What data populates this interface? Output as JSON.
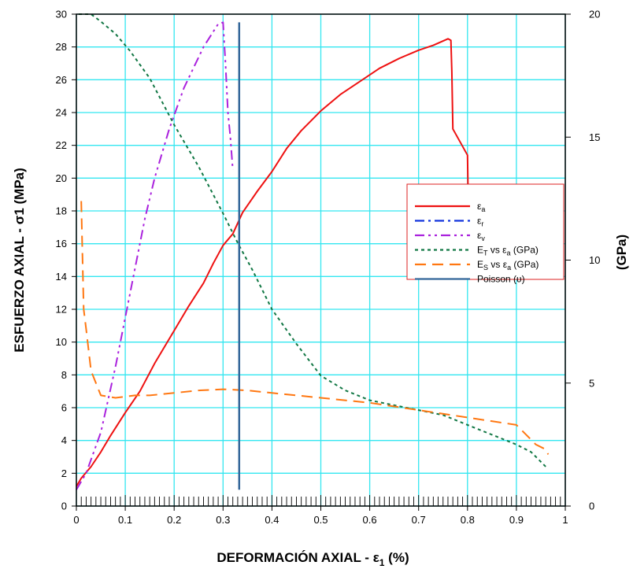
{
  "chart_data": {
    "type": "line",
    "xlabel": "DEFORMACIÓN AXIAL - ε",
    "xlabel_sub": "1",
    "xlabel_unit": " (%)",
    "ylabel": "ESFUERZO AXIAL - σ1 (MPa)",
    "y2label": "(GPa)",
    "xlim": [
      0,
      1
    ],
    "ylim": [
      0,
      30
    ],
    "y2lim": [
      0,
      20
    ],
    "grid": true,
    "legend_position": "right-center",
    "x_ticks": [
      "0",
      "0.1",
      "0.2",
      "0.3",
      "0.4",
      "0.5",
      "0.6",
      "0.7",
      "0.8",
      "0.9",
      "1"
    ],
    "y_ticks": [
      "0",
      "2",
      "4",
      "6",
      "8",
      "10",
      "12",
      "14",
      "16",
      "18",
      "20",
      "22",
      "24",
      "26",
      "28",
      "30"
    ],
    "y2_ticks": [
      "0",
      "5",
      "10",
      "15",
      "20"
    ],
    "legend": [
      {
        "symbol": "ε",
        "sub": "a",
        "suffix": "",
        "color": "#ee1111",
        "dash": ""
      },
      {
        "symbol": "ε",
        "sub": "r",
        "suffix": "",
        "color": "#1133dd",
        "dash": "12,5,3,5"
      },
      {
        "symbol": "ε",
        "sub": "v",
        "suffix": "",
        "color": "#aa22dd",
        "dash": "12,5,3,5,3,5"
      },
      {
        "symbol": "E",
        "sub": "T",
        "suffix": " vs ε",
        "sub2": "a",
        "suffix2": " (GPa)",
        "color": "#117744",
        "dash": "4,4"
      },
      {
        "symbol": "E",
        "sub": "S",
        "suffix": " vs ε",
        "sub2": "a",
        "suffix2": " (GPa)",
        "color": "#ff7711",
        "dash": "14,8"
      },
      {
        "symbol": "Poisson (υ)",
        "sub": "",
        "suffix": "",
        "color": "#336699",
        "dash": ""
      }
    ],
    "series": [
      {
        "axis": "left",
        "color": "#ee1111",
        "dash": "",
        "width": 2,
        "points": [
          [
            0,
            1.2
          ],
          [
            0.01,
            1.7
          ],
          [
            0.03,
            2.4
          ],
          [
            0.05,
            3.3
          ],
          [
            0.07,
            4.3
          ],
          [
            0.1,
            5.7
          ],
          [
            0.13,
            7
          ],
          [
            0.16,
            8.7
          ],
          [
            0.2,
            10.7
          ],
          [
            0.23,
            12.2
          ],
          [
            0.26,
            13.6
          ],
          [
            0.28,
            14.8
          ],
          [
            0.3,
            15.9
          ],
          [
            0.32,
            16.6
          ],
          [
            0.34,
            17.9
          ],
          [
            0.37,
            19.2
          ],
          [
            0.4,
            20.4
          ],
          [
            0.43,
            21.8
          ],
          [
            0.46,
            22.9
          ],
          [
            0.5,
            24.1
          ],
          [
            0.54,
            25.1
          ],
          [
            0.58,
            25.9
          ],
          [
            0.62,
            26.7
          ],
          [
            0.66,
            27.3
          ],
          [
            0.7,
            27.8
          ],
          [
            0.73,
            28.1
          ],
          [
            0.76,
            28.5
          ],
          [
            0.766,
            28.4
          ],
          [
            0.768,
            26.5
          ],
          [
            0.77,
            23
          ],
          [
            0.8,
            21.4
          ],
          [
            0.801,
            19.5
          ]
        ]
      },
      {
        "axis": "left",
        "color": "#aa22dd",
        "dash": "12,5,3,5,3,5",
        "width": 2,
        "points": [
          [
            0,
            1
          ],
          [
            0.02,
            2
          ],
          [
            0.05,
            4.5
          ],
          [
            0.08,
            8.5
          ],
          [
            0.1,
            11.5
          ],
          [
            0.12,
            14.5
          ],
          [
            0.14,
            17.5
          ],
          [
            0.16,
            20
          ],
          [
            0.19,
            23
          ],
          [
            0.22,
            25.5
          ],
          [
            0.26,
            28
          ],
          [
            0.29,
            29.4
          ],
          [
            0.3,
            29.5
          ],
          [
            0.305,
            27
          ],
          [
            0.31,
            24
          ],
          [
            0.315,
            22.5
          ],
          [
            0.32,
            20.5
          ]
        ]
      },
      {
        "axis": "right",
        "color": "#117744",
        "dash": "4,4",
        "width": 2,
        "points": [
          [
            0.005,
            20
          ],
          [
            0.03,
            20
          ],
          [
            0.05,
            19.7
          ],
          [
            0.08,
            19.2
          ],
          [
            0.11,
            18.5
          ],
          [
            0.15,
            17.4
          ],
          [
            0.2,
            15.5
          ],
          [
            0.25,
            13.8
          ],
          [
            0.3,
            11.9
          ],
          [
            0.33,
            10.7
          ],
          [
            0.36,
            9.6
          ],
          [
            0.4,
            8
          ],
          [
            0.45,
            6.6
          ],
          [
            0.5,
            5.3
          ],
          [
            0.55,
            4.7
          ],
          [
            0.6,
            4.3
          ],
          [
            0.65,
            4.1
          ],
          [
            0.7,
            3.9
          ],
          [
            0.75,
            3.7
          ],
          [
            0.8,
            3.3
          ],
          [
            0.85,
            2.9
          ],
          [
            0.9,
            2.5
          ],
          [
            0.93,
            2.2
          ],
          [
            0.96,
            1.6
          ]
        ]
      },
      {
        "axis": "right",
        "color": "#ff7711",
        "dash": "14,8",
        "width": 2,
        "points": [
          [
            0.01,
            12.4
          ],
          [
            0.012,
            10.5
          ],
          [
            0.015,
            8
          ],
          [
            0.02,
            7.2
          ],
          [
            0.03,
            5.5
          ],
          [
            0.05,
            4.5
          ],
          [
            0.08,
            4.4
          ],
          [
            0.12,
            4.5
          ],
          [
            0.15,
            4.5
          ],
          [
            0.2,
            4.6
          ],
          [
            0.25,
            4.7
          ],
          [
            0.3,
            4.75
          ],
          [
            0.35,
            4.7
          ],
          [
            0.4,
            4.6
          ],
          [
            0.5,
            4.4
          ],
          [
            0.6,
            4.2
          ],
          [
            0.7,
            3.9
          ],
          [
            0.8,
            3.6
          ],
          [
            0.9,
            3.3
          ],
          [
            0.94,
            2.5
          ],
          [
            0.96,
            2.3
          ],
          [
            0.965,
            2.1
          ]
        ]
      },
      {
        "axis": "left",
        "color": "#336699",
        "dash": "",
        "width": 2.5,
        "points": [
          [
            0.333,
            1
          ],
          [
            0.333,
            29.5
          ]
        ]
      }
    ]
  }
}
